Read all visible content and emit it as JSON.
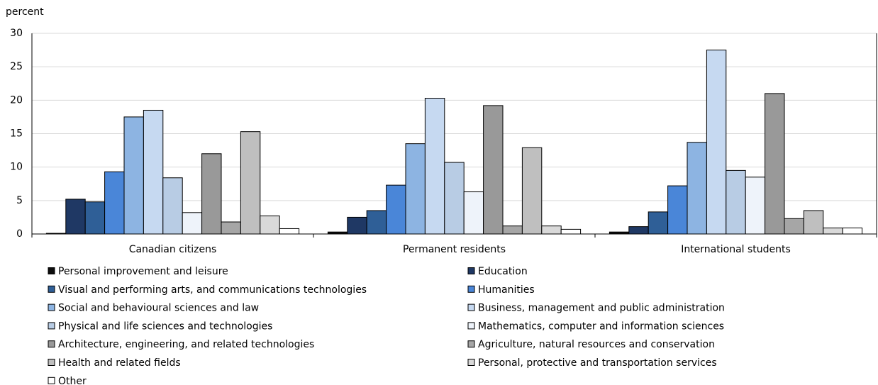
{
  "chart_data": {
    "type": "bar",
    "ylabel": "percent",
    "categories": [
      "Canadian citizens",
      "Permanent residents",
      "International students"
    ],
    "series": [
      {
        "name": "Personal improvement and leisure",
        "color": "#0d0d0d",
        "values": [
          0.1,
          0.3,
          0.3
        ]
      },
      {
        "name": "Education",
        "color": "#1f3864",
        "values": [
          5.2,
          2.5,
          1.1
        ]
      },
      {
        "name": "Visual and performing arts, and communications technologies",
        "color": "#2f5f97",
        "values": [
          4.8,
          3.5,
          3.3
        ]
      },
      {
        "name": "Humanities",
        "color": "#4a86d8",
        "values": [
          9.3,
          7.3,
          7.2
        ]
      },
      {
        "name": "Social and behavioural sciences and law",
        "color": "#8db4e2",
        "values": [
          17.5,
          13.5,
          13.7
        ]
      },
      {
        "name": "Business, management and public administration",
        "color": "#c6d9f1",
        "values": [
          18.5,
          20.3,
          27.5
        ]
      },
      {
        "name": "Physical and life sciences and technologies",
        "color": "#b8cce4",
        "values": [
          8.4,
          10.7,
          9.5
        ]
      },
      {
        "name": "Mathematics, computer and information sciences",
        "color": "#eef3fa",
        "values": [
          3.2,
          6.3,
          8.5
        ]
      },
      {
        "name": "Architecture, engineering, and related technologies",
        "color": "#999999",
        "values": [
          12.0,
          19.2,
          21.0
        ]
      },
      {
        "name": "Agriculture, natural resources and conservation",
        "color": "#a6a6a6",
        "values": [
          1.8,
          1.2,
          2.3
        ]
      },
      {
        "name": "Health and related fields",
        "color": "#bfbfbf",
        "values": [
          15.3,
          12.9,
          3.5
        ]
      },
      {
        "name": "Personal, protective and transportation services",
        "color": "#d9d9d9",
        "values": [
          2.7,
          1.2,
          0.9
        ]
      },
      {
        "name": "Other",
        "color": "#ffffff",
        "values": [
          0.8,
          0.7,
          0.9
        ]
      }
    ],
    "ylim": [
      0,
      30
    ],
    "yticks": [
      0,
      5,
      10,
      15,
      20,
      25,
      30
    ],
    "grid": true,
    "legend": "bottom"
  }
}
